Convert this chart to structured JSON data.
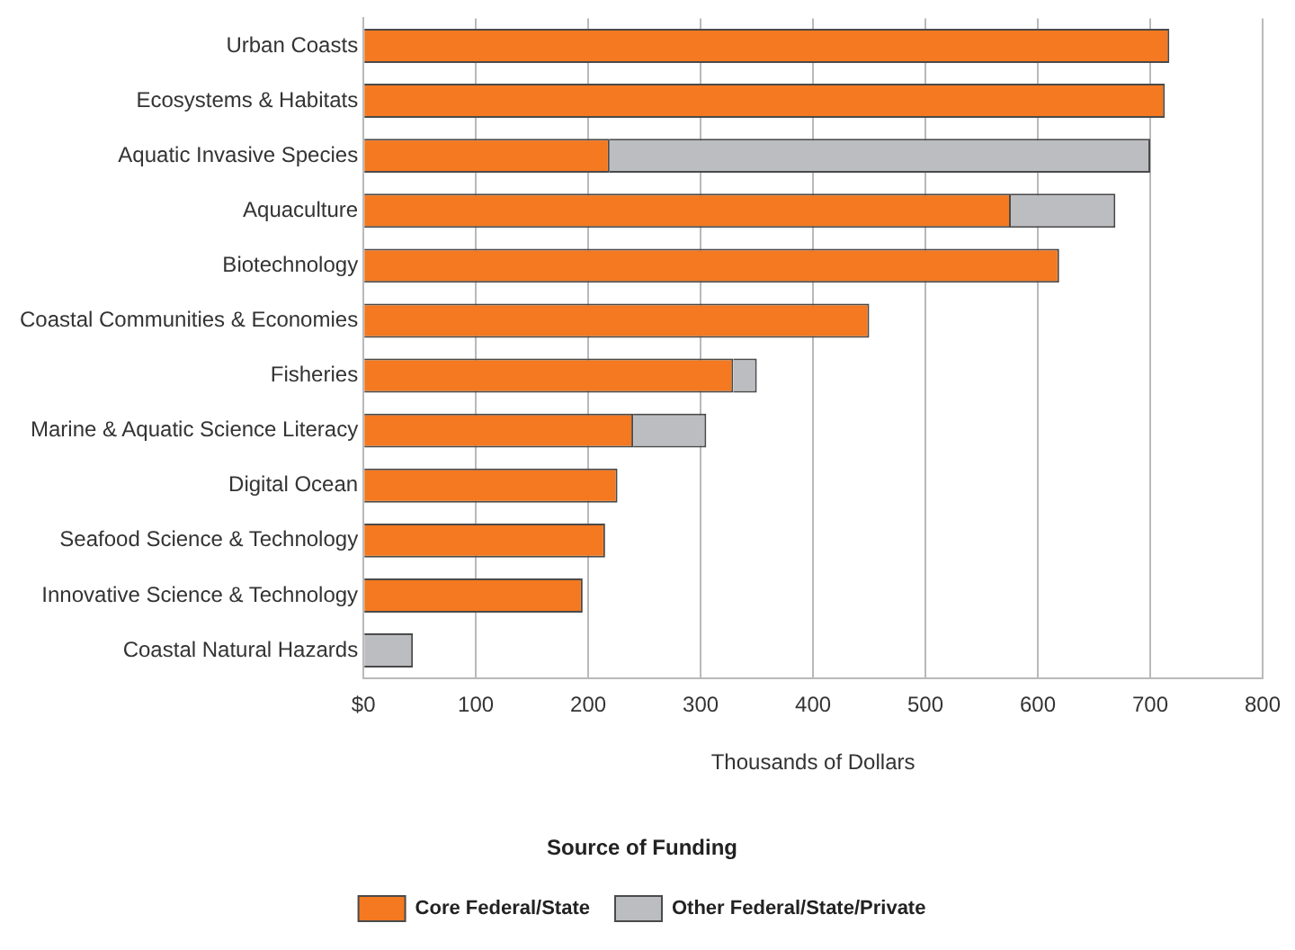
{
  "chart_data": {
    "type": "bar",
    "orientation": "horizontal",
    "stacked": true,
    "categories": [
      "Urban Coasts",
      "Ecosystems & Habitats",
      "Aquatic Invasive Species",
      "Aquaculture",
      "Biotechnology",
      "Coastal Communities & Economies",
      "Fisheries",
      "Marine & Aquatic Science Literacy",
      "Digital Ocean",
      "Seafood Science & Technology",
      "Innovative Science & Technology",
      "Coastal Natural Hazards"
    ],
    "series": [
      {
        "name": "Core Federal/State",
        "color": "#f47920",
        "values": [
          717,
          713,
          219,
          576,
          619,
          450,
          329,
          240,
          226,
          215,
          195,
          null
        ]
      },
      {
        "name": "Other Federal/State/Private",
        "color": "#bcbdc0",
        "values": [
          null,
          null,
          481,
          93,
          null,
          null,
          21,
          65,
          null,
          null,
          null,
          44
        ]
      }
    ],
    "xlim": [
      0,
      800
    ],
    "xticks": [
      {
        "value": 0,
        "label": "$0"
      },
      100,
      200,
      300,
      400,
      500,
      600,
      700,
      800
    ],
    "xlabel": "Thousands of Dollars",
    "legend_title": "Source of Funding",
    "legend": "bottom",
    "grid": "x"
  }
}
